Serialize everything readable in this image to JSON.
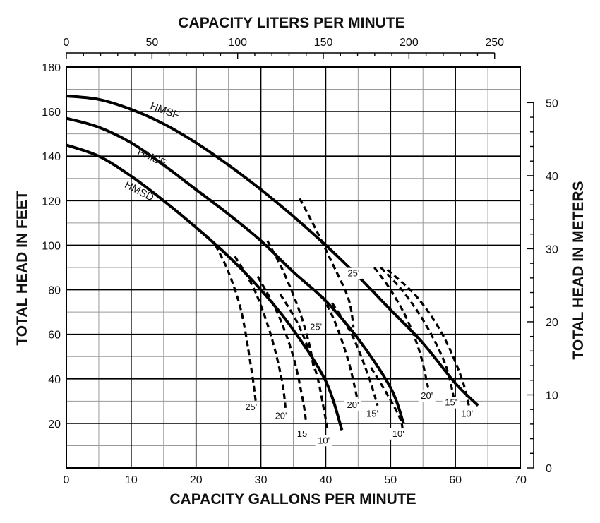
{
  "chart_data": {
    "type": "line",
    "title": "",
    "x_bottom": {
      "label": "CAPACITY GALLONS PER MINUTE",
      "ticks": [
        0,
        10,
        20,
        30,
        40,
        50,
        60,
        70
      ],
      "range": [
        0,
        70
      ]
    },
    "x_top": {
      "label": "CAPACITY LITERS PER MINUTE",
      "ticks": [
        0,
        50,
        100,
        150,
        200,
        250
      ],
      "range": [
        0,
        265
      ]
    },
    "y_left": {
      "label": "TOTAL HEAD IN FEET",
      "ticks": [
        20,
        40,
        60,
        80,
        100,
        120,
        140,
        160,
        180
      ],
      "range": [
        0,
        180
      ]
    },
    "y_right": {
      "label": "TOTAL HEAD IN METERS",
      "ticks": [
        0,
        10,
        20,
        30,
        40,
        50
      ],
      "range": [
        0,
        54.9
      ]
    },
    "grid": true,
    "series": [
      {
        "name": "HMSF",
        "style": "solid",
        "x": [
          0,
          5,
          10,
          15,
          20,
          25,
          30,
          35,
          40,
          45,
          50,
          55,
          60,
          63.5
        ],
        "y": [
          167,
          165.5,
          161,
          154.5,
          146,
          136,
          125,
          113,
          100,
          86,
          71,
          56,
          38,
          28
        ]
      },
      {
        "name": "HMSE",
        "style": "solid",
        "x": [
          0,
          5,
          10,
          15,
          20,
          25,
          30,
          35,
          40,
          45,
          50,
          52
        ],
        "y": [
          157,
          153,
          146,
          136,
          125,
          114,
          102,
          88,
          75,
          58,
          36,
          20
        ]
      },
      {
        "name": "HMSD",
        "style": "solid",
        "x": [
          0,
          5,
          10,
          15,
          20,
          25,
          30,
          35,
          40,
          42.5
        ],
        "y": [
          145,
          140,
          131,
          120,
          108,
          95,
          80,
          62,
          39,
          17
        ]
      },
      {
        "name": "25'",
        "style": "dashed",
        "x": [
          23,
          25,
          27,
          28.5,
          29.2
        ],
        "y": [
          100,
          88,
          70,
          45,
          30
        ]
      },
      {
        "name": "20'",
        "style": "dashed",
        "x": [
          26,
          29,
          31.5,
          33.2,
          33.8
        ],
        "y": [
          95,
          80,
          60,
          40,
          27
        ]
      },
      {
        "name": "15'",
        "style": "dashed",
        "x": [
          29.5,
          32.5,
          35,
          36.5,
          37
        ],
        "y": [
          86,
          70,
          50,
          30,
          20
        ]
      },
      {
        "name": "10'",
        "style": "dashed",
        "x": [
          33,
          36,
          38.5,
          39.8,
          40.3
        ],
        "y": [
          78,
          63,
          43,
          25,
          17
        ]
      },
      {
        "name": "25'",
        "style": "dashed",
        "x": [
          31,
          33.5,
          36,
          37.5,
          38.2
        ],
        "y": [
          102,
          88,
          70,
          55,
          44
        ]
      },
      {
        "name": "20'",
        "style": "dashed",
        "x": [
          39.5,
          41.5,
          43.5,
          44.8
        ],
        "y": [
          77,
          65,
          48,
          32
        ]
      },
      {
        "name": "15'",
        "style": "dashed",
        "x": [
          41,
          44,
          46.5,
          48
        ],
        "y": [
          74,
          60,
          42,
          28
        ]
      },
      {
        "name": "10'",
        "style": "dashed",
        "x": [
          47,
          49.5,
          51.5,
          51.9
        ],
        "y": [
          45,
          33,
          22,
          16
        ]
      },
      {
        "name": "25'",
        "style": "dashed",
        "x": [
          36,
          38.5,
          41,
          43.5,
          44.3
        ],
        "y": [
          121,
          107,
          92,
          76,
          63
        ]
      },
      {
        "name": "20'",
        "style": "dashed",
        "x": [
          47.5,
          50,
          52.5,
          54.5,
          55.8
        ],
        "y": [
          90,
          80,
          67,
          52,
          36
        ]
      },
      {
        "name": "15'",
        "style": "dashed",
        "x": [
          48.5,
          52,
          55.5,
          58.5,
          60
        ],
        "y": [
          90,
          79,
          64,
          46,
          28
        ]
      },
      {
        "name": "10'",
        "style": "dashed",
        "x": [
          49.5,
          54,
          58,
          61,
          62.3
        ],
        "y": [
          89,
          77,
          60,
          40,
          25
        ]
      }
    ],
    "curve_labels": [
      {
        "text": "HMSF",
        "x": 15,
        "y": 159,
        "angle": 20
      },
      {
        "text": "HMSE",
        "x": 13,
        "y": 138,
        "angle": 24
      },
      {
        "text": "HMSD",
        "x": 11,
        "y": 123,
        "angle": 28
      }
    ],
    "depth_labels": [
      {
        "text": "25'",
        "x": 28.5,
        "y": 26
      },
      {
        "text": "20'",
        "x": 33.1,
        "y": 22
      },
      {
        "text": "15'",
        "x": 36.5,
        "y": 14
      },
      {
        "text": "10'",
        "x": 39.7,
        "y": 11
      },
      {
        "text": "25'",
        "x": 38.5,
        "y": 62
      },
      {
        "text": "20'",
        "x": 44.2,
        "y": 27
      },
      {
        "text": "15'",
        "x": 47.2,
        "y": 23
      },
      {
        "text": "10'",
        "x": 51.2,
        "y": 14
      },
      {
        "text": "25'",
        "x": 44.3,
        "y": 86
      },
      {
        "text": "20'",
        "x": 55.6,
        "y": 31
      },
      {
        "text": "15'",
        "x": 59.3,
        "y": 28
      },
      {
        "text": "10'",
        "x": 61.8,
        "y": 23
      }
    ]
  }
}
